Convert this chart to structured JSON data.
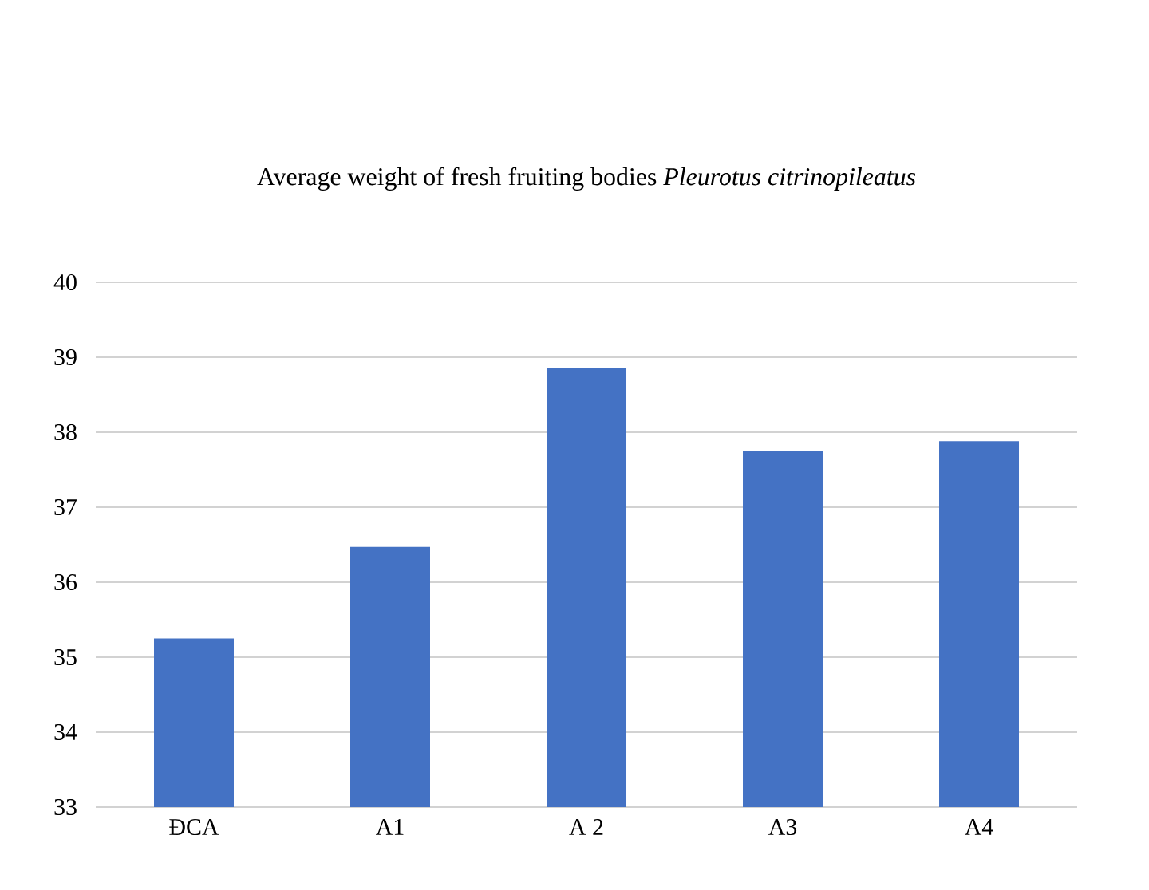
{
  "chart_data": {
    "type": "bar",
    "title": "Average weight of fresh fruiting bodies *Pleurotus citrinopileatus*",
    "categories": [
      "ĐCA",
      "A1",
      "A 2",
      "A3",
      "A4"
    ],
    "values": [
      35.25,
      36.47,
      38.85,
      37.75,
      37.88
    ],
    "color": "#4472c4",
    "ylim": [
      33,
      40
    ],
    "yticks": [
      33,
      34,
      35,
      36,
      37,
      38,
      39,
      40
    ],
    "grid": "y"
  }
}
